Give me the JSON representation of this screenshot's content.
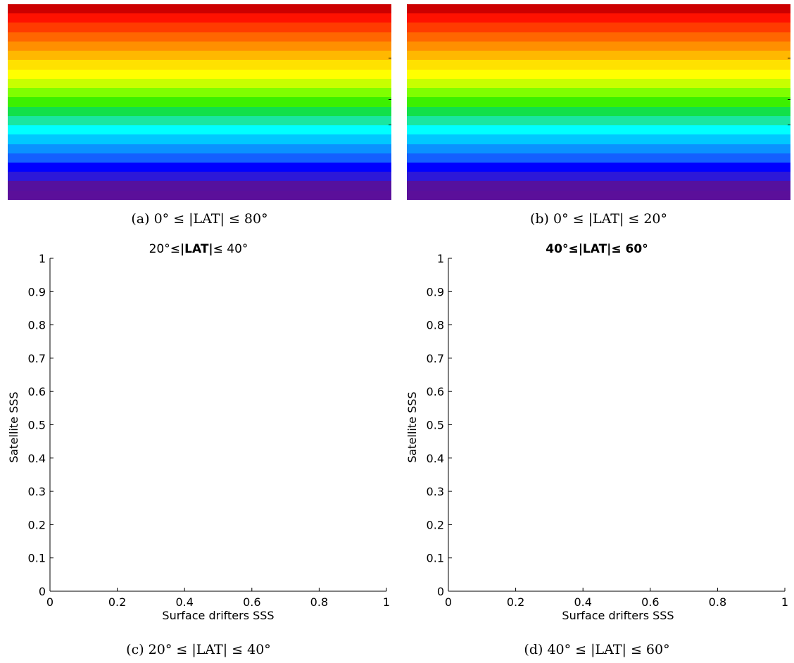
{
  "panels_top": [
    {
      "caption": "(a) 0° ≤ |LAT| ≤ 80°",
      "bands": [
        "#cc0000",
        "#ff1100",
        "#ff3b00",
        "#ff6600",
        "#ff8f00",
        "#ffb800",
        "#ffe100",
        "#ffff00",
        "#c8ff00",
        "#7fff00",
        "#3cf000",
        "#12e04a",
        "#1ae6a0",
        "#00ffff",
        "#00c8ff",
        "#0a92ff",
        "#1460ff",
        "#0000ff",
        "#2d18d8",
        "#55109e",
        "#5b0f9a"
      ]
    },
    {
      "caption": "(b) 0° ≤ |LAT| ≤ 20°",
      "bands": [
        "#cc0000",
        "#ff1100",
        "#ff3b00",
        "#ff6600",
        "#ff8f00",
        "#ffb800",
        "#ffe100",
        "#ffff00",
        "#c8ff00",
        "#7fff00",
        "#3cf000",
        "#12e04a",
        "#1ae6a0",
        "#00ffff",
        "#00c8ff",
        "#0a92ff",
        "#1460ff",
        "#0000ff",
        "#2d18d8",
        "#55109e",
        "#5b0f9a"
      ]
    }
  ],
  "chart_data": [
    {
      "type": "scatter",
      "title_prefix": "20°≤",
      "title_lat": "|LAT|",
      "title_suffix": "≤ 40°",
      "xlabel": "Surface drifters SSS",
      "ylabel": "Satellite SSS",
      "xlim": [
        0,
        1
      ],
      "ylim": [
        0,
        1
      ],
      "xticks": [
        "0",
        "0.2",
        "0.4",
        "0.6",
        "0.8",
        "1"
      ],
      "yticks": [
        "0",
        "0.1",
        "0.2",
        "0.3",
        "0.4",
        "0.5",
        "0.6",
        "0.7",
        "0.8",
        "0.9",
        "1"
      ],
      "grid": false,
      "points": [],
      "caption": "(c) 20° ≤ |LAT| ≤ 40°"
    },
    {
      "type": "scatter",
      "title_prefix": "40°≤",
      "title_lat": "|LAT|",
      "title_suffix": "≤ 60°",
      "xlabel": "Surface drifters SSS",
      "ylabel": "Satellite SSS",
      "xlim": [
        0,
        1
      ],
      "ylim": [
        0,
        1
      ],
      "xticks": [
        "0",
        "0.2",
        "0.4",
        "0.6",
        "0.8",
        "1"
      ],
      "yticks": [
        "0",
        "0.1",
        "0.2",
        "0.3",
        "0.4",
        "0.5",
        "0.6",
        "0.7",
        "0.8",
        "0.9",
        "1"
      ],
      "grid": false,
      "points": [],
      "caption": "(d) 40° ≤ |LAT| ≤ 60°"
    }
  ]
}
